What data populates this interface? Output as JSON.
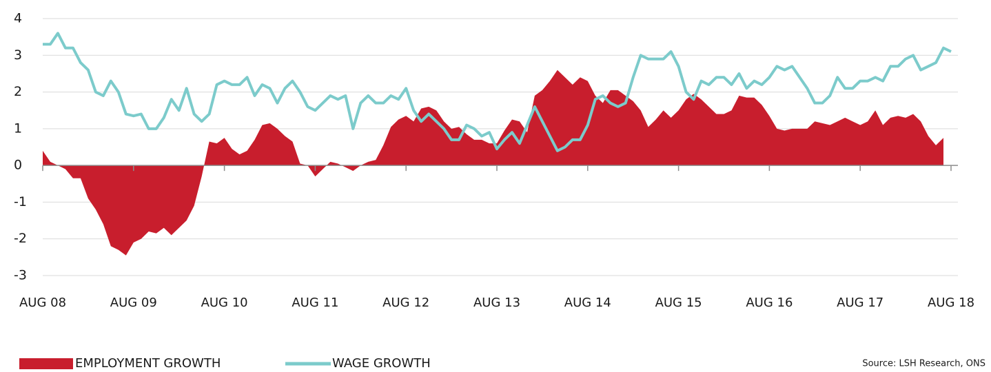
{
  "chart_data": {
    "type": "area-line",
    "categories": [
      "AUG 08",
      null,
      null,
      null,
      null,
      null,
      null,
      null,
      null,
      null,
      null,
      null,
      "AUG 09",
      null,
      null,
      null,
      null,
      null,
      null,
      null,
      null,
      null,
      null,
      null,
      "AUG 10",
      null,
      null,
      null,
      null,
      null,
      null,
      null,
      null,
      null,
      null,
      null,
      "AUG 11",
      null,
      null,
      null,
      null,
      null,
      null,
      null,
      null,
      null,
      null,
      null,
      "AUG 12",
      null,
      null,
      null,
      null,
      null,
      null,
      null,
      null,
      null,
      null,
      null,
      "AUG 13",
      null,
      null,
      null,
      null,
      null,
      null,
      null,
      null,
      null,
      null,
      null,
      "AUG 14",
      null,
      null,
      null,
      null,
      null,
      null,
      null,
      null,
      null,
      null,
      null,
      "AUG 15",
      null,
      null,
      null,
      null,
      null,
      null,
      null,
      null,
      null,
      null,
      null,
      "AUG 16",
      null,
      null,
      null,
      null,
      null,
      null,
      null,
      null,
      null,
      null,
      null,
      "AUG 17",
      null,
      null,
      null,
      null,
      null,
      null,
      null,
      null,
      null,
      null,
      null,
      "AUG 18"
    ],
    "series": [
      {
        "name": "EMPLOYMENT GROWTH",
        "color": "#c81e2d",
        "kind": "area",
        "values": [
          0.4,
          0.1,
          0,
          -0.1,
          -0.35,
          -0.35,
          -0.9,
          -1.2,
          -1.6,
          -2.2,
          -2.3,
          -2.45,
          -2.1,
          -2.0,
          -1.8,
          -1.85,
          -1.7,
          -1.9,
          -1.7,
          -1.5,
          -1.1,
          -0.3,
          0.65,
          0.6,
          0.75,
          0.45,
          0.3,
          0.4,
          0.7,
          1.1,
          1.15,
          1.0,
          0.8,
          0.65,
          0.05,
          0.0,
          -0.3,
          -0.1,
          0.1,
          0.05,
          -0.05,
          -0.15,
          0,
          0.1,
          0.15,
          0.55,
          1.05,
          1.25,
          1.35,
          1.2,
          1.55,
          1.6,
          1.5,
          1.2,
          1.0,
          1.05,
          0.85,
          0.7,
          0.7,
          0.6,
          0.6,
          0.95,
          1.25,
          1.2,
          0.9,
          1.9,
          2.05,
          2.3,
          2.6,
          2.4,
          2.2,
          2.4,
          2.3,
          1.9,
          1.7,
          2.05,
          2.05,
          1.9,
          1.75,
          1.5,
          1.05,
          1.25,
          1.5,
          1.3,
          1.5,
          1.8,
          1.95,
          1.8,
          1.6,
          1.4,
          1.4,
          1.5,
          1.9,
          1.85,
          1.85,
          1.65,
          1.35,
          1.0,
          0.95,
          1.0,
          1.0,
          1.0,
          1.2,
          1.15,
          1.1,
          1.2,
          1.3,
          1.2,
          1.1,
          1.2,
          1.5,
          1.1,
          1.3,
          1.35,
          1.3,
          1.4,
          1.2,
          0.8,
          0.55,
          0.75,
          null
        ]
      },
      {
        "name": "WAGE GROWTH",
        "color": "#7ccbcb",
        "kind": "line",
        "values": [
          3.3,
          3.3,
          3.6,
          3.2,
          3.2,
          2.8,
          2.6,
          2.0,
          1.9,
          2.3,
          2.0,
          1.4,
          1.35,
          1.4,
          1.0,
          1.0,
          1.3,
          1.8,
          1.5,
          2.1,
          1.4,
          1.2,
          1.4,
          2.2,
          2.3,
          2.2,
          2.2,
          2.4,
          1.9,
          2.2,
          2.1,
          1.7,
          2.1,
          2.3,
          2.0,
          1.6,
          1.5,
          1.7,
          1.9,
          1.8,
          1.9,
          1.0,
          1.7,
          1.9,
          1.7,
          1.7,
          1.9,
          1.8,
          2.1,
          1.5,
          1.2,
          1.4,
          1.2,
          1.0,
          0.7,
          0.7,
          1.1,
          1.0,
          0.8,
          0.9,
          0.45,
          0.7,
          0.9,
          0.6,
          1.1,
          1.6,
          1.2,
          0.8,
          0.4,
          0.5,
          0.7,
          0.7,
          1.1,
          1.8,
          1.9,
          1.7,
          1.6,
          1.7,
          2.4,
          3.0,
          2.9,
          2.9,
          2.9,
          3.1,
          2.7,
          2.0,
          1.8,
          2.3,
          2.2,
          2.4,
          2.4,
          2.2,
          2.5,
          2.1,
          2.3,
          2.2,
          2.4,
          2.7,
          2.6,
          2.7,
          2.4,
          2.1,
          1.7,
          1.7,
          1.9,
          2.4,
          2.1,
          2.1,
          2.3,
          2.3,
          2.4,
          2.3,
          2.7,
          2.7,
          2.9,
          3.0,
          2.6,
          2.7,
          2.8,
          3.2,
          3.1
        ]
      }
    ],
    "ylim": [
      -3,
      4
    ],
    "yticks": [
      -3,
      -2,
      -1,
      0,
      1,
      2,
      3,
      4
    ],
    "grid": true,
    "legend": "bottom-left",
    "source": "Source: LSH Research, ONS"
  }
}
